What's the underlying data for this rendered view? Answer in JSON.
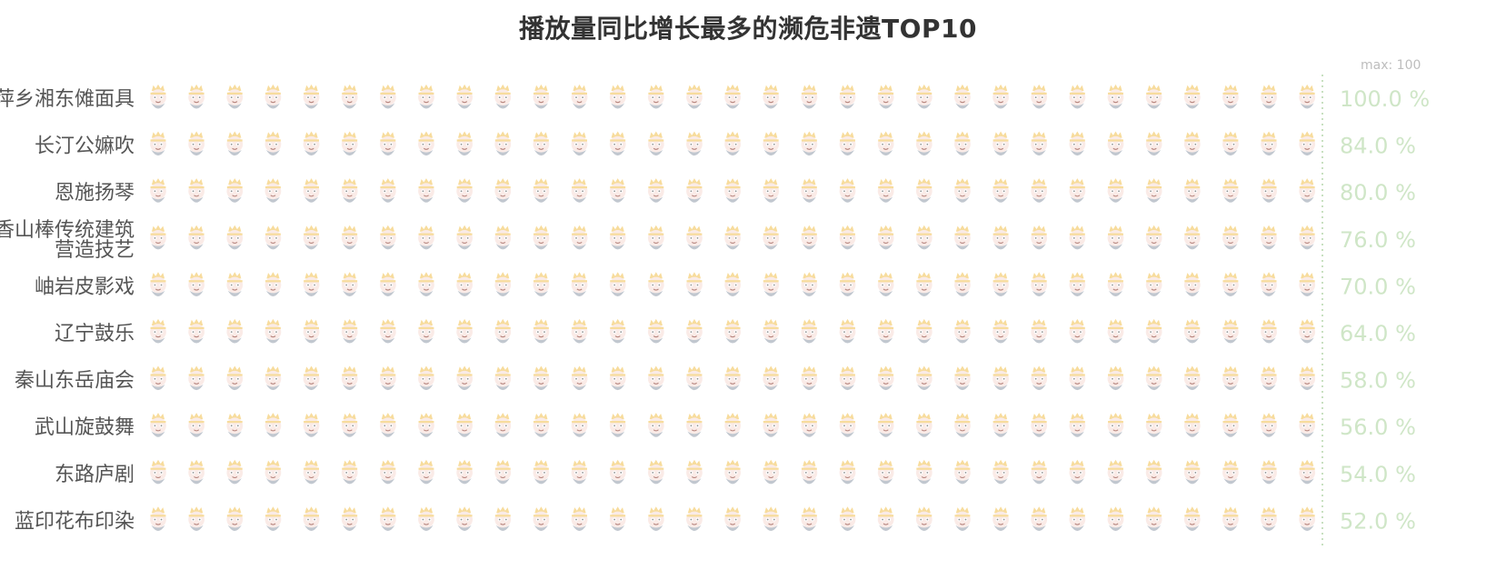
{
  "chart_data": {
    "type": "pictorial-bar",
    "title": "播放量同比增长最多的濒危非遗TOP10",
    "max_label": "max: 100",
    "xlim": [
      0,
      100
    ],
    "symbol": "mask-icon",
    "symbols_per_row": 31,
    "categories": [
      "萍乡湘东傩面具",
      "长汀公嫲吹",
      "恩施扬琴",
      "香山棒传统建筑营造技艺",
      "岫岩皮影戏",
      "辽宁鼓乐",
      "秦山东岳庙会",
      "武山旋鼓舞",
      "东路庐剧",
      "蓝印花布印染"
    ],
    "category_lines": [
      [
        "萍乡湘东傩面具"
      ],
      [
        "长汀公嫲吹"
      ],
      [
        "恩施扬琴"
      ],
      [
        "香山棒传统建筑",
        "营造技艺"
      ],
      [
        "岫岩皮影戏"
      ],
      [
        "辽宁鼓乐"
      ],
      [
        "秦山东岳庙会"
      ],
      [
        "武山旋鼓舞"
      ],
      [
        "东路庐剧"
      ],
      [
        "蓝印花布印染"
      ]
    ],
    "values": [
      100,
      84,
      80,
      76,
      70,
      64,
      58,
      56,
      54,
      52
    ],
    "value_labels": [
      "100.0 %",
      "84.0 %",
      "80.0 %",
      "76.0 %",
      "70.0 %",
      "64.0 %",
      "58.0 %",
      "56.0 %",
      "54.0 %",
      "52.0 %"
    ],
    "colors": {
      "title": "#333333",
      "category_text": "#555555",
      "value_text": "#cfe6c7",
      "max_text": "#bdbdbd",
      "max_line": "#c8e0c0",
      "mask_face": "#e8674a",
      "mask_crown": "#f2c14e",
      "mask_beard": "#8f9aa8",
      "mask_ghost": "#f7dcd4"
    }
  }
}
